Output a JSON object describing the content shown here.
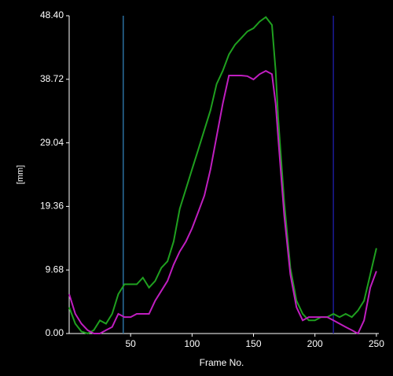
{
  "chart_data": {
    "type": "line",
    "xlabel": "Frame No.",
    "ylabel": "[mm]",
    "x": [
      0,
      5,
      10,
      15,
      20,
      25,
      30,
      35,
      40,
      45,
      50,
      55,
      60,
      65,
      70,
      75,
      80,
      85,
      90,
      95,
      100,
      105,
      110,
      115,
      120,
      125,
      130,
      135,
      140,
      145,
      150,
      155,
      160,
      165,
      168,
      170,
      175,
      180,
      185,
      190,
      195,
      200,
      205,
      210,
      215,
      220,
      225,
      230,
      235,
      240,
      245,
      250
    ],
    "series": [
      {
        "color": "#1fa01f",
        "values": [
          4,
          1.5,
          0.3,
          0,
          0.5,
          2,
          1.5,
          3,
          6,
          7.5,
          7.5,
          7.5,
          8.5,
          7,
          8,
          10,
          11,
          14,
          19,
          22,
          25,
          28,
          31,
          34,
          38,
          40,
          42.5,
          44,
          45,
          46,
          46.5,
          47.5,
          48.2,
          47,
          40,
          33,
          20,
          10,
          5,
          3,
          2,
          2,
          2.5,
          2.5,
          3,
          2.5,
          3,
          2.5,
          3.5,
          5,
          9,
          13
        ]
      },
      {
        "color": "#c01ec0",
        "values": [
          6,
          3,
          1.5,
          0.5,
          0,
          0,
          0.5,
          1,
          3,
          2.5,
          2.5,
          3,
          3,
          3,
          5,
          6.5,
          8,
          10.5,
          12.5,
          14,
          16,
          18.5,
          21,
          25,
          30,
          35,
          39.3,
          39.3,
          39.3,
          39.2,
          38.7,
          39.5,
          40,
          39.5,
          35,
          30,
          18,
          9,
          4,
          2,
          2.5,
          2.5,
          2.5,
          2.5,
          2,
          1.5,
          1,
          0.5,
          0,
          2,
          7,
          9.5
        ]
      }
    ],
    "markers": [
      {
        "x": 44,
        "color": "#2b6f9e"
      },
      {
        "x": 215,
        "color": "#1b1b96"
      }
    ],
    "xlim": [
      0,
      252
    ],
    "xticks": [
      50,
      100,
      150,
      200,
      250
    ],
    "ylim": [
      0,
      48.4
    ],
    "yticks": [
      {
        "value": 0,
        "label": "0.00"
      },
      9.68,
      19.36,
      29.04,
      38.72,
      {
        "value": 48.4,
        "label": "48.40"
      }
    ],
    "grid": false
  }
}
